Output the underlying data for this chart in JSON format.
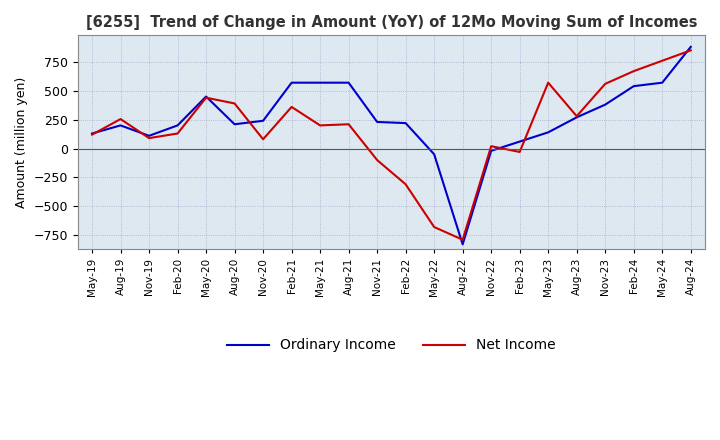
{
  "title": "[6255]  Trend of Change in Amount (YoY) of 12Mo Moving Sum of Incomes",
  "ylabel": "Amount (million yen)",
  "ylim": [
    -870,
    980
  ],
  "yticks": [
    -750,
    -500,
    -250,
    0,
    250,
    500,
    750
  ],
  "background_color": "#ffffff",
  "plot_bg_color": "#dde8f0",
  "grid_color": "#aaaacc",
  "ordinary_income_color": "#0000cc",
  "net_income_color": "#cc0000",
  "x_labels": [
    "May-19",
    "Aug-19",
    "Nov-19",
    "Feb-20",
    "May-20",
    "Aug-20",
    "Nov-20",
    "Feb-21",
    "May-21",
    "Aug-21",
    "Nov-21",
    "Feb-22",
    "May-22",
    "Aug-22",
    "Nov-22",
    "Feb-23",
    "May-23",
    "Aug-23",
    "Nov-23",
    "Feb-24",
    "May-24",
    "Aug-24"
  ],
  "ordinary_income": [
    130,
    200,
    110,
    200,
    450,
    210,
    240,
    570,
    570,
    570,
    230,
    220,
    -50,
    -830,
    -20,
    60,
    140,
    270,
    380,
    540,
    570,
    880
  ],
  "net_income": [
    120,
    255,
    90,
    130,
    440,
    390,
    80,
    360,
    200,
    210,
    -100,
    -310,
    -680,
    -790,
    20,
    -30,
    570,
    280,
    560,
    670,
    760,
    850
  ]
}
